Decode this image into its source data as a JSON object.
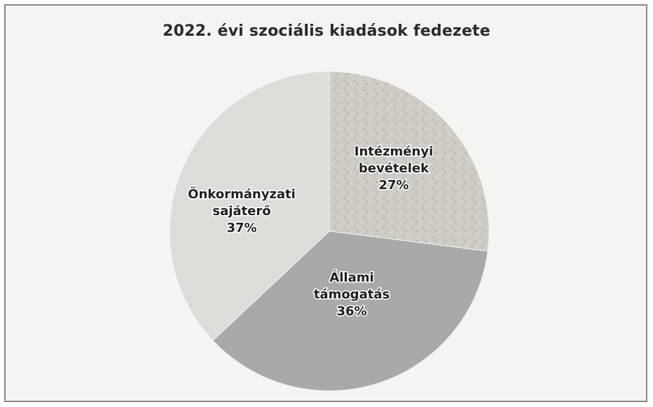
{
  "chart_data": {
    "type": "pie",
    "title": "2022. évi szociális kiadások fedezete",
    "slices": [
      {
        "label_lines": [
          "Intézményi",
          "bevételek"
        ],
        "value": 27,
        "value_label": "27%",
        "color": "#c9c7c2"
      },
      {
        "label_lines": [
          "Állami",
          "támogatás"
        ],
        "value": 36,
        "value_label": "36%",
        "color": "#a9a9ab"
      },
      {
        "label_lines": [
          "Önkormányzati",
          "sajáterő"
        ],
        "value": 37,
        "value_label": "37%",
        "color": "#dcdcd8"
      }
    ]
  }
}
